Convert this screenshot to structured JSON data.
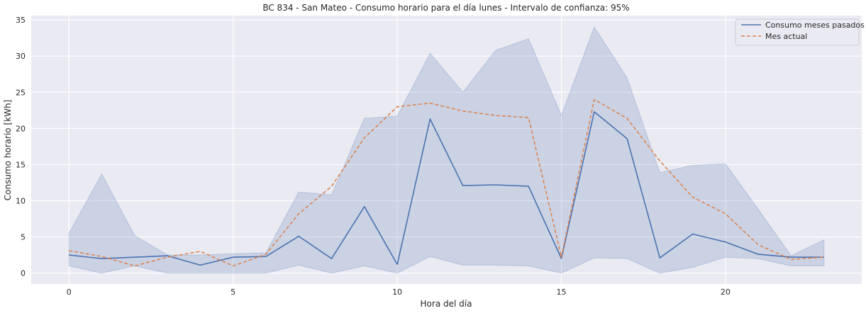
{
  "chart_data": {
    "type": "line",
    "title": "BC 834 - San Mateo - Consumo horario para el día lunes - Intervalo de confianza: 95%",
    "xlabel": "Hora del día",
    "ylabel": "Consumo horario [kWh]",
    "xlim": [
      -1.15,
      24.15
    ],
    "ylim": [
      -1.5,
      35.6
    ],
    "xticks": [
      0,
      5,
      10,
      15,
      20
    ],
    "yticks": [
      0,
      5,
      10,
      15,
      20,
      25,
      30,
      35
    ],
    "grid": true,
    "legend_position": "top-right",
    "x": [
      0,
      1,
      2,
      3,
      4,
      5,
      6,
      7,
      8,
      9,
      10,
      11,
      12,
      13,
      14,
      15,
      16,
      17,
      18,
      19,
      20,
      21,
      22,
      23
    ],
    "series": [
      {
        "name": "Consumo meses pasados",
        "style": "solid",
        "color": "#4c72b0",
        "values": [
          2.5,
          2.0,
          2.2,
          2.4,
          1.1,
          2.2,
          2.3,
          5.1,
          2.0,
          9.2,
          1.2,
          21.3,
          12.1,
          12.2,
          12.0,
          2.0,
          22.3,
          18.6,
          2.1,
          5.4,
          4.3,
          2.6,
          2.2,
          2.2
        ],
        "ci_lower": [
          1.0,
          0.0,
          1.0,
          0.0,
          0.0,
          0.0,
          0.0,
          1.1,
          0.0,
          1.0,
          0.0,
          2.3,
          1.1,
          1.1,
          1.0,
          0.0,
          2.1,
          2.0,
          0.0,
          0.8,
          2.2,
          2.0,
          1.0,
          1.0
        ],
        "ci_upper": [
          5.5,
          13.7,
          5.2,
          2.5,
          2.5,
          2.7,
          2.8,
          11.2,
          10.8,
          21.4,
          21.7,
          30.4,
          25.0,
          30.8,
          32.4,
          21.8,
          34.0,
          27.0,
          13.9,
          14.9,
          15.1,
          8.8,
          2.4,
          4.6
        ]
      },
      {
        "name": "Mes actual",
        "style": "dashed",
        "color": "#dd8452",
        "values": [
          3.1,
          2.3,
          1.0,
          2.2,
          3.0,
          1.0,
          2.6,
          8.2,
          12.0,
          18.7,
          23.0,
          23.5,
          22.4,
          21.8,
          21.5,
          2.2,
          24.0,
          21.4,
          15.5,
          10.5,
          8.2,
          3.9,
          1.9,
          2.2
        ]
      }
    ],
    "ci_color": "#4c72b0"
  }
}
